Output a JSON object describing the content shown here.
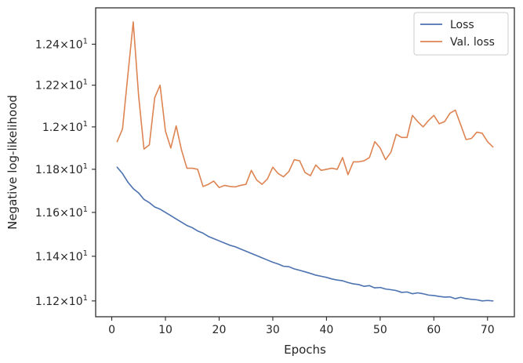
{
  "chart_data": {
    "type": "line",
    "title": "",
    "xlabel": "Epochs",
    "ylabel": "Negative log-likelihood",
    "xlim": [
      -3,
      75
    ],
    "ylim": [
      11.13,
      12.58
    ],
    "x_ticks": [
      0,
      10,
      20,
      30,
      40,
      50,
      60,
      70
    ],
    "y_ticks": [
      11.2,
      11.4,
      11.6,
      11.8,
      12.0,
      12.2,
      12.4
    ],
    "y_tick_labels": [
      {
        "mantissa": "1.12",
        "base": "10",
        "exp": "1"
      },
      {
        "mantissa": "1.14",
        "base": "10",
        "exp": "1"
      },
      {
        "mantissa": "1.16",
        "base": "10",
        "exp": "1"
      },
      {
        "mantissa": "1.18",
        "base": "10",
        "exp": "1"
      },
      {
        "mantissa": "1.2",
        "base": "10",
        "exp": "1"
      },
      {
        "mantissa": "1.22",
        "base": "10",
        "exp": "1"
      },
      {
        "mantissa": "1.24",
        "base": "10",
        "exp": "1"
      }
    ],
    "y_scale": "log",
    "grid": false,
    "legend_position": "top-right",
    "x": [
      1,
      2,
      3,
      4,
      5,
      6,
      7,
      8,
      9,
      10,
      11,
      12,
      13,
      14,
      15,
      16,
      17,
      18,
      19,
      20,
      21,
      22,
      23,
      24,
      25,
      26,
      27,
      28,
      29,
      30,
      31,
      32,
      33,
      34,
      35,
      36,
      37,
      38,
      39,
      40,
      41,
      42,
      43,
      44,
      45,
      46,
      47,
      48,
      49,
      50,
      51,
      52,
      53,
      54,
      55,
      56,
      57,
      58,
      59,
      60,
      61,
      62,
      63,
      64,
      65,
      66,
      67,
      68,
      69,
      70,
      71
    ],
    "series": [
      {
        "name": "Loss",
        "color": "#4c72b0",
        "values": [
          11.81,
          11.78,
          11.74,
          11.71,
          11.69,
          11.66,
          11.645,
          11.625,
          11.615,
          11.6,
          11.585,
          11.57,
          11.555,
          11.54,
          11.53,
          11.515,
          11.505,
          11.49,
          11.48,
          11.47,
          11.46,
          11.45,
          11.443,
          11.433,
          11.423,
          11.413,
          11.403,
          11.393,
          11.383,
          11.373,
          11.365,
          11.355,
          11.353,
          11.343,
          11.337,
          11.33,
          11.323,
          11.315,
          11.31,
          11.305,
          11.298,
          11.293,
          11.29,
          11.282,
          11.276,
          11.273,
          11.265,
          11.268,
          11.258,
          11.26,
          11.253,
          11.25,
          11.246,
          11.238,
          11.24,
          11.232,
          11.236,
          11.232,
          11.226,
          11.224,
          11.22,
          11.217,
          11.218,
          11.21,
          11.216,
          11.21,
          11.207,
          11.205,
          11.2,
          11.202,
          11.2
        ]
      },
      {
        "name": "Val. loss",
        "color": "#dd8452",
        "values": [
          11.93,
          11.99,
          12.25,
          12.51,
          12.15,
          11.895,
          11.915,
          12.14,
          12.2,
          11.98,
          11.9,
          12.005,
          11.89,
          11.805,
          11.805,
          11.8,
          11.72,
          11.73,
          11.745,
          11.715,
          11.725,
          11.72,
          11.718,
          11.725,
          11.73,
          11.795,
          11.75,
          11.73,
          11.755,
          11.81,
          11.78,
          11.765,
          11.79,
          11.845,
          11.84,
          11.785,
          11.77,
          11.82,
          11.795,
          11.8,
          11.805,
          11.8,
          11.855,
          11.775,
          11.835,
          11.835,
          11.84,
          11.855,
          11.93,
          11.9,
          11.845,
          11.88,
          11.965,
          11.95,
          11.95,
          12.055,
          12.025,
          12.0,
          12.03,
          12.055,
          12.015,
          12.025,
          12.065,
          12.08,
          12.01,
          11.94,
          11.945,
          11.975,
          11.97,
          11.93,
          11.905
        ]
      }
    ]
  }
}
